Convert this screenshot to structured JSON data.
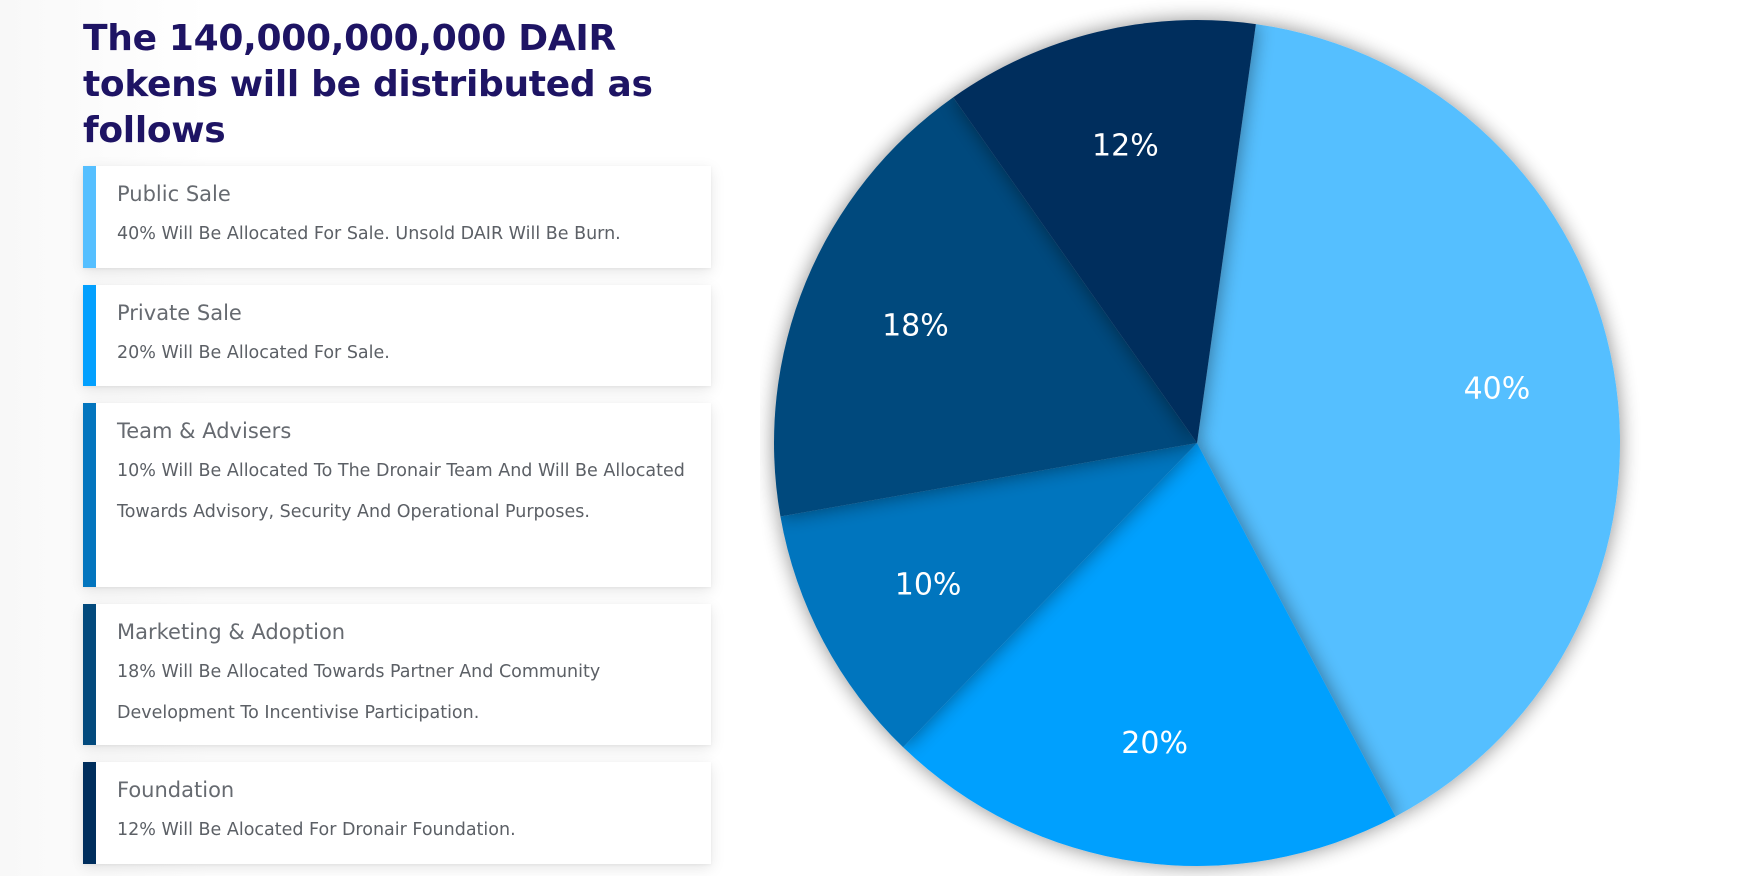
{
  "header": {
    "title": "The 140,000,000,000 DAIR tokens will be distributed as follows"
  },
  "cards": [
    {
      "title": "Public Sale",
      "text": "40% Will Be Allocated For Sale. Unsold DAIR Will Be Burn.",
      "color": "#55bfff"
    },
    {
      "title": "Private Sale",
      "text": "20% Will Be Allocated For Sale.",
      "color": "#03a0fe"
    },
    {
      "title": "Team & Advisers",
      "text": "10% Will Be Allocated To The Dronair Team And Will Be Allocated Towards Advisory, Security And Operational Purposes.",
      "color": "#0375be"
    },
    {
      "title": "Marketing & Adoption",
      "text": "18% Will Be Allocated Towards Partner And Community Development To Incentivise Participation.",
      "color": "#034a7d"
    },
    {
      "title": "Foundation",
      "text": "12% Will Be Alocated For Dronair Foundation.",
      "color": "#002e5d"
    }
  ],
  "chart_data": {
    "type": "pie",
    "title": "",
    "slices": [
      {
        "label": "40%",
        "value": 40,
        "color": "#55bfff"
      },
      {
        "label": "20%",
        "value": 20,
        "color": "#03a0fe"
      },
      {
        "label": "10%",
        "value": 10,
        "color": "#0375be"
      },
      {
        "label": "18%",
        "value": 18,
        "color": "#034a7d"
      },
      {
        "label": "12%",
        "value": 12,
        "color": "#002e5d"
      }
    ],
    "start_at": "top, slightly right of center",
    "direction": "clockwise"
  }
}
